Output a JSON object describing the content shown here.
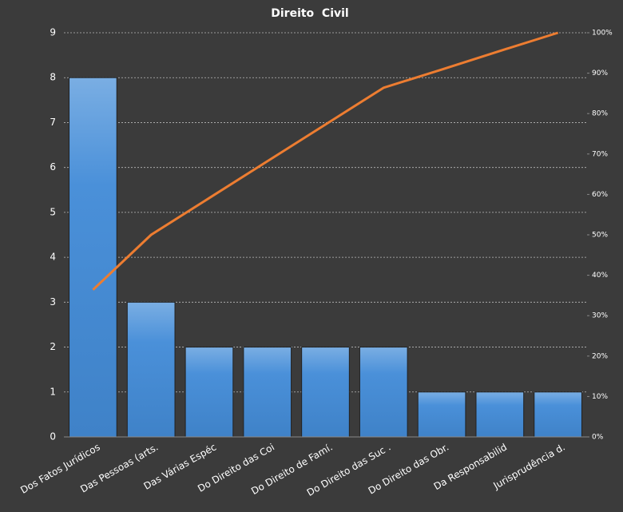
{
  "chart_data": {
    "type": "bar",
    "title": "Direito  Civil",
    "categories": [
      "Dos Fatos Jurídicos",
      "Das Pessoas (arts.",
      "Das Várias Espéc",
      "Do Direito das Coi",
      "Do Direito de Famí.",
      "Do Direito das Suc .",
      "Do Direito das Obr.",
      "Da Responsabilid",
      "Jurisprudência d."
    ],
    "series": [
      {
        "type": "bar",
        "color": "#4a90d9",
        "values": [
          8,
          3,
          2,
          2,
          2,
          2,
          1,
          1,
          1
        ]
      },
      {
        "type": "line",
        "color": "#ed7d31",
        "axis": "y2",
        "values": [
          36.4,
          50,
          59.1,
          68.2,
          77.3,
          86.4,
          90.9,
          95.5,
          100
        ]
      }
    ],
    "ylim": [
      0,
      9
    ],
    "yticks": [
      0,
      1,
      2,
      3,
      4,
      5,
      6,
      7,
      8,
      9
    ],
    "y2lim": [
      0,
      100
    ],
    "y2ticks": [
      {
        "value": 0,
        "label": "0%"
      },
      {
        "value": 10,
        "label": "10%"
      },
      {
        "value": 20,
        "label": "20%"
      },
      {
        "value": 30,
        "label": "30%"
      },
      {
        "value": 40,
        "label": "40%"
      },
      {
        "value": 50,
        "label": "50%"
      },
      {
        "value": 60,
        "label": "60%"
      },
      {
        "value": 70,
        "label": "70%"
      },
      {
        "value": 80,
        "label": "80%"
      },
      {
        "value": 90,
        "label": "90%"
      },
      {
        "value": 100,
        "label": "100%"
      }
    ],
    "grid": true
  }
}
